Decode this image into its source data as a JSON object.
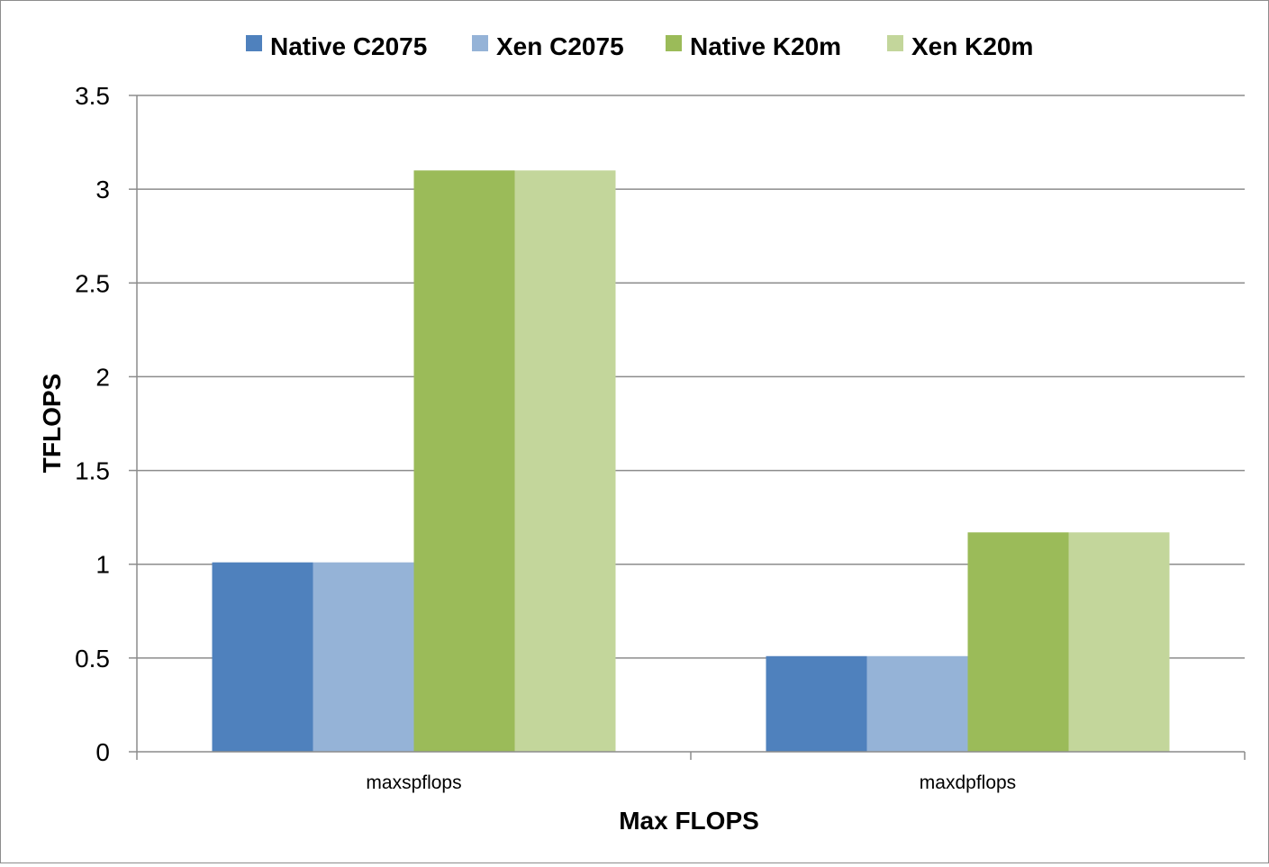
{
  "chart_data": {
    "type": "bar",
    "title": "",
    "xlabel": "Max FLOPS",
    "ylabel": "TFLOPS",
    "ylim": [
      0,
      3.5
    ],
    "yticks": [
      "0",
      "0.5",
      "1",
      "1.5",
      "2",
      "2.5",
      "3",
      "3.5"
    ],
    "grid": true,
    "legend_position": "top",
    "categories": [
      "maxspflops",
      "maxdpflops"
    ],
    "series": [
      {
        "name": "Native C2075",
        "color": "#4f81bd",
        "values": [
          1.01,
          0.51
        ]
      },
      {
        "name": "Xen C2075",
        "color": "#95b3d7",
        "values": [
          1.01,
          0.51
        ]
      },
      {
        "name": "Native K20m",
        "color": "#9bbb59",
        "values": [
          3.1,
          1.17
        ]
      },
      {
        "name": "Xen K20m",
        "color": "#c3d69b",
        "values": [
          3.1,
          1.17
        ]
      }
    ]
  }
}
